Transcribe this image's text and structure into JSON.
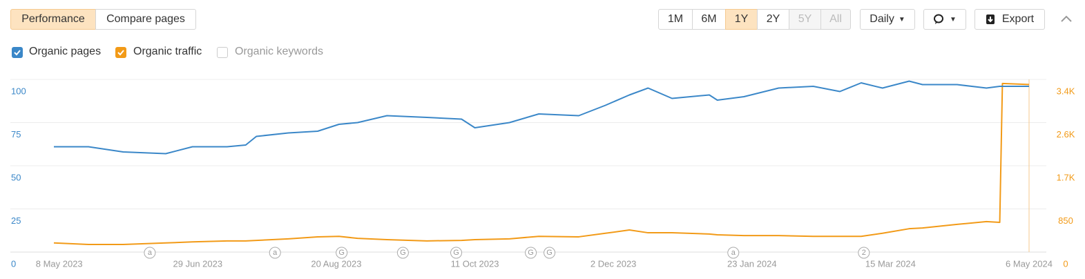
{
  "toolbar": {
    "tabs": [
      "Performance",
      "Compare pages"
    ],
    "ranges": [
      "1M",
      "6M",
      "1Y",
      "2Y",
      "5Y",
      "All"
    ],
    "interval": "Daily",
    "export": "Export",
    "unchecked_metric": "Organic keywords"
  },
  "chart_data": {
    "type": "line",
    "x": [
      "2023-05-06",
      "2023-05-19",
      "2023-06-01",
      "2023-06-17",
      "2023-06-27",
      "2023-07-10",
      "2023-07-17",
      "2023-07-21",
      "2023-08-02",
      "2023-08-13",
      "2023-08-21",
      "2023-08-28",
      "2023-09-08",
      "2023-09-23",
      "2023-10-06",
      "2023-10-11",
      "2023-10-24",
      "2023-11-04",
      "2023-11-19",
      "2023-11-29",
      "2023-12-08",
      "2023-12-15",
      "2023-12-24",
      "2024-01-07",
      "2024-01-10",
      "2024-01-20",
      "2024-02-02",
      "2024-02-15",
      "2024-02-25",
      "2024-03-04",
      "2024-03-12",
      "2024-03-22",
      "2024-03-27",
      "2024-04-09",
      "2024-04-20",
      "2024-04-25",
      "2024-04-26",
      "2024-05-06"
    ],
    "series": [
      {
        "name": "Organic pages",
        "color": "#3a87c8",
        "axis": "y",
        "values": [
          61,
          61,
          58,
          57,
          61,
          61,
          62,
          67,
          69,
          70,
          74,
          75,
          79,
          78,
          77,
          72,
          75,
          80,
          79,
          85,
          91,
          95,
          89,
          91,
          88,
          90,
          95,
          96,
          93,
          98,
          95,
          99,
          97,
          97,
          95,
          96,
          96,
          96
        ]
      },
      {
        "name": "Organic traffic",
        "color": "#f29a17",
        "axis": "y2",
        "values": [
          180,
          150,
          150,
          180,
          200,
          220,
          220,
          230,
          260,
          300,
          310,
          270,
          245,
          220,
          230,
          245,
          260,
          310,
          300,
          370,
          435,
          380,
          380,
          355,
          340,
          325,
          325,
          310,
          310,
          310,
          370,
          460,
          475,
          545,
          600,
          585,
          3320,
          3300
        ]
      }
    ],
    "xlim": [
      "2023-05-06",
      "2024-05-06"
    ],
    "xticks": [
      {
        "value": "2023-05-08",
        "label": "8 May 2023"
      },
      {
        "value": "2023-06-29",
        "label": "29 Jun 2023"
      },
      {
        "value": "2023-08-20",
        "label": "20 Aug 2023"
      },
      {
        "value": "2023-10-11",
        "label": "11 Oct 2023"
      },
      {
        "value": "2023-12-02",
        "label": "2 Dec 2023"
      },
      {
        "value": "2024-01-23",
        "label": "23 Jan 2024"
      },
      {
        "value": "2024-03-15",
        "label": "15 Mar 2024"
      },
      {
        "value": "2024-05-06",
        "label": "6 May 2024"
      }
    ],
    "ylim": [
      0,
      100
    ],
    "yticks": [
      0,
      25,
      50,
      75,
      100
    ],
    "y2lim": [
      0,
      3400
    ],
    "y2ticks": [
      0,
      850,
      {
        "value": 1700,
        "label": "1.7K"
      },
      {
        "value": 2550,
        "label": "2.6K"
      },
      {
        "value": 3400,
        "label": "3.4K"
      }
    ],
    "grid": true,
    "annotations": [
      {
        "x": "2023-06-11",
        "label": "a"
      },
      {
        "x": "2023-07-28",
        "label": "a"
      },
      {
        "x": "2023-08-22",
        "label": "G"
      },
      {
        "x": "2023-09-14",
        "label": "G"
      },
      {
        "x": "2023-10-04",
        "label": "G"
      },
      {
        "x": "2023-11-01",
        "label": "G"
      },
      {
        "x": "2023-11-08",
        "label": "G"
      },
      {
        "x": "2024-01-16",
        "label": "a"
      },
      {
        "x": "2024-03-05",
        "label": "2"
      }
    ]
  }
}
